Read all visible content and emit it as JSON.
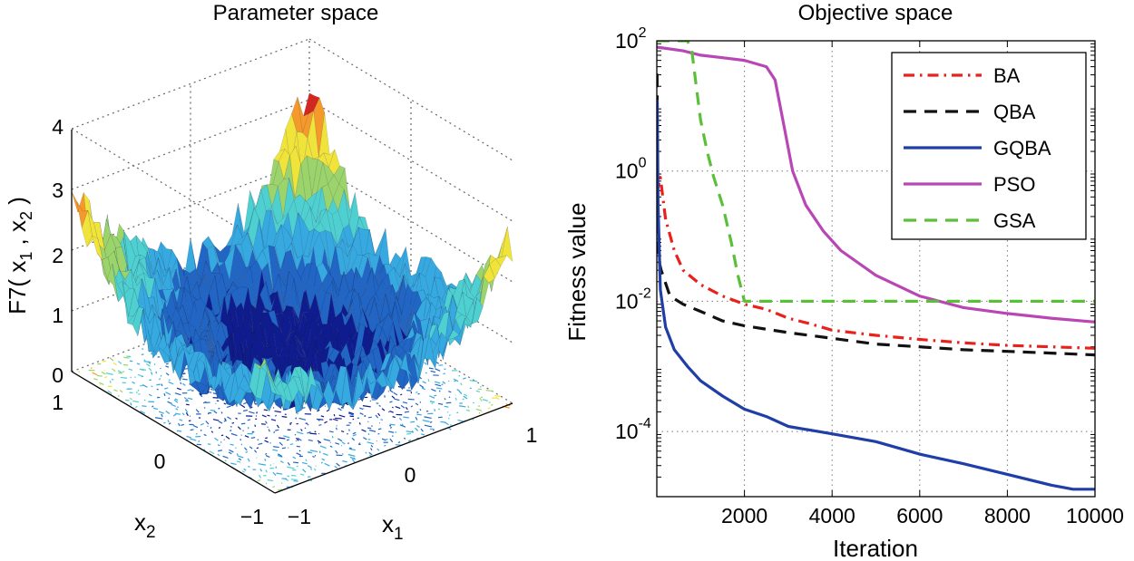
{
  "chart_data": [
    {
      "type": "surface",
      "title": "Parameter space",
      "xlabel": "x",
      "xlabel_sub": "1",
      "ylabel": "x",
      "ylabel_sub": "2",
      "zlabel": "F7( x₁ , x₂ )",
      "zlabel_parts": {
        "pre": "F7( x",
        "sub1": "1",
        "mid": " , x",
        "sub2": "2",
        "post": " )"
      },
      "x_ticks": [
        "−1",
        "0",
        "1"
      ],
      "y_ticks": [
        "−1",
        "0",
        "1"
      ],
      "z_ticks": [
        "0",
        "1",
        "2",
        "3",
        "4"
      ],
      "zlim": [
        0,
        4
      ],
      "colormap": [
        "#0f1c8f",
        "#2166c4",
        "#35a9e0",
        "#4fd0d0",
        "#9bd46a",
        "#f0e43a",
        "#f59a2a",
        "#d6261e",
        "#8c0e0e"
      ],
      "description_values": {
        "corner_left_max": 3.3,
        "corner_back_max": 4.1,
        "corner_right_max": 2.7,
        "center_min": 0.5
      }
    },
    {
      "type": "line",
      "title": "Objective space",
      "xlabel": "Iteration",
      "ylabel": "Fitness value",
      "yscale": "log",
      "xlim": [
        0,
        10000
      ],
      "ylim_exp": [
        -5,
        2
      ],
      "x_ticks": [
        "2000",
        "4000",
        "6000",
        "8000",
        "10000"
      ],
      "x_tick_values": [
        2000,
        4000,
        6000,
        8000,
        10000
      ],
      "y_ticks": [
        {
          "base": "10",
          "exp": "2",
          "value_exp": 2
        },
        {
          "base": "10",
          "exp": "0",
          "value_exp": 0
        },
        {
          "base": "10",
          "exp": "-2",
          "value_exp": -2
        },
        {
          "base": "10",
          "exp": "-4",
          "value_exp": -4
        }
      ],
      "grid": true,
      "legend_position": "top-right",
      "series": [
        {
          "name": "BA",
          "color": "#e8211d",
          "dash": "dashdot",
          "points": [
            [
              0,
              0.45
            ],
            [
              80,
              0.8
            ],
            [
              200,
              0.18
            ],
            [
              400,
              0.06
            ],
            [
              600,
              0.03
            ],
            [
              1000,
              0.018
            ],
            [
              1500,
              0.012
            ],
            [
              2000,
              0.009
            ],
            [
              2500,
              0.0075
            ],
            [
              3000,
              0.0055
            ],
            [
              3500,
              0.0045
            ],
            [
              4000,
              0.0036
            ],
            [
              5000,
              0.003
            ],
            [
              6000,
              0.0026
            ],
            [
              7000,
              0.0023
            ],
            [
              8000,
              0.0021
            ],
            [
              9000,
              0.002
            ],
            [
              10000,
              0.0019
            ]
          ]
        },
        {
          "name": "QBA",
          "color": "#111111",
          "dash": "dash",
          "points": [
            [
              0,
              30
            ],
            [
              6,
              30
            ],
            [
              20,
              0.05
            ],
            [
              100,
              0.03
            ],
            [
              300,
              0.012
            ],
            [
              600,
              0.009
            ],
            [
              1000,
              0.007
            ],
            [
              1500,
              0.005
            ],
            [
              2000,
              0.0042
            ],
            [
              3000,
              0.0033
            ],
            [
              4000,
              0.0027
            ],
            [
              5000,
              0.0022
            ],
            [
              6000,
              0.002
            ],
            [
              7000,
              0.0018
            ],
            [
              8000,
              0.0017
            ],
            [
              9000,
              0.0016
            ],
            [
              10000,
              0.0015
            ]
          ]
        },
        {
          "name": "GQBA",
          "color": "#1f3ea6",
          "dash": "solid",
          "points": [
            [
              0,
              12
            ],
            [
              10,
              12
            ],
            [
              30,
              0.3
            ],
            [
              80,
              0.015
            ],
            [
              200,
              0.004
            ],
            [
              400,
              0.0018
            ],
            [
              700,
              0.001
            ],
            [
              1000,
              0.0006
            ],
            [
              1500,
              0.00035
            ],
            [
              2000,
              0.00022
            ],
            [
              2500,
              0.00017
            ],
            [
              3000,
              0.00012
            ],
            [
              4000,
              9.2e-05
            ],
            [
              5000,
              7e-05
            ],
            [
              6000,
              4.5e-05
            ],
            [
              7000,
              3.2e-05
            ],
            [
              8000,
              2.2e-05
            ],
            [
              9000,
              1.5e-05
            ],
            [
              9500,
              1.3e-05
            ],
            [
              10000,
              1.3e-05
            ]
          ]
        },
        {
          "name": "PSO",
          "color": "#b847b5",
          "dash": "solid",
          "points": [
            [
              0,
              80
            ],
            [
              600,
              70
            ],
            [
              1000,
              60
            ],
            [
              1500,
              55
            ],
            [
              2000,
              50
            ],
            [
              2500,
              40
            ],
            [
              2700,
              25
            ],
            [
              2900,
              5
            ],
            [
              3100,
              1
            ],
            [
              3400,
              0.3
            ],
            [
              3800,
              0.12
            ],
            [
              4200,
              0.06
            ],
            [
              5000,
              0.025
            ],
            [
              6000,
              0.012
            ],
            [
              7000,
              0.008
            ],
            [
              8000,
              0.0065
            ],
            [
              9000,
              0.0055
            ],
            [
              10000,
              0.0048
            ]
          ]
        },
        {
          "name": "GSA",
          "color": "#5cbf3a",
          "dash": "dash",
          "points": [
            [
              0,
              100
            ],
            [
              700,
              100
            ],
            [
              800,
              70
            ],
            [
              900,
              20
            ],
            [
              1000,
              6
            ],
            [
              1150,
              2
            ],
            [
              1300,
              0.8
            ],
            [
              1500,
              0.3
            ],
            [
              1700,
              0.08
            ],
            [
              1850,
              0.025
            ],
            [
              2000,
              0.01
            ],
            [
              10000,
              0.01
            ]
          ]
        }
      ]
    }
  ]
}
